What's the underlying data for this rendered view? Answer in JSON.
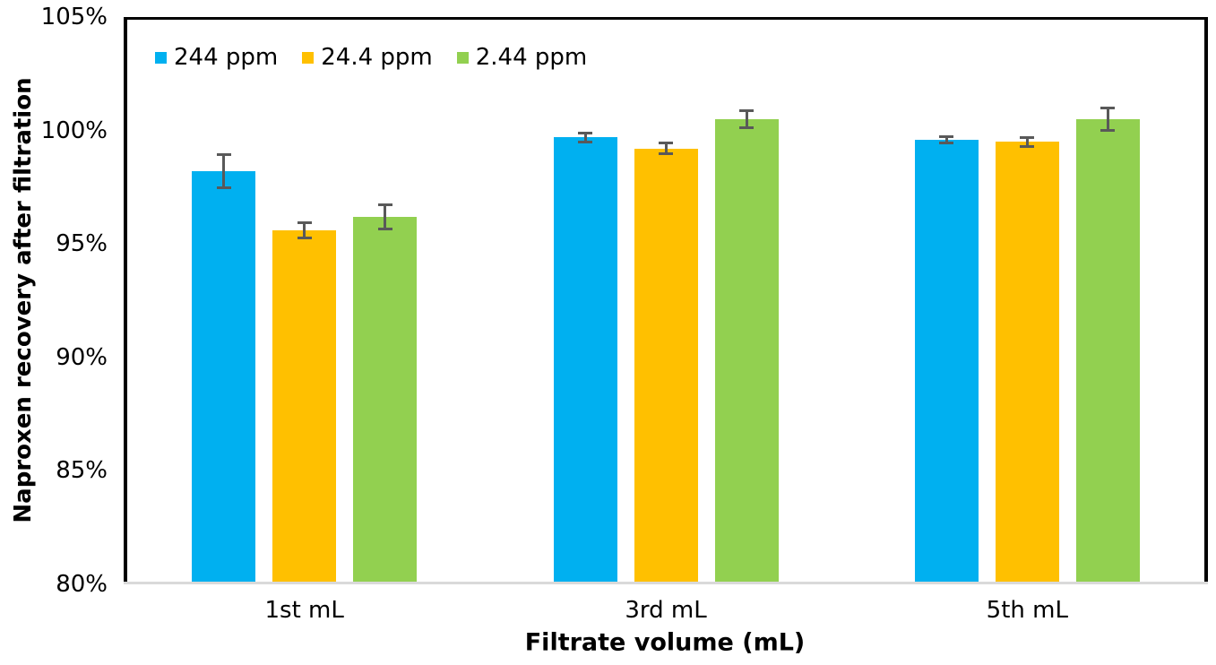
{
  "chart_data": {
    "type": "bar",
    "title": "",
    "categories": [
      "1st mL",
      "3rd mL",
      "5th mL"
    ],
    "series": [
      {
        "name": "244 ppm",
        "color": "#00B0F0",
        "values": [
          98.2,
          99.7,
          99.6
        ],
        "errors": [
          0.8,
          0.25,
          0.2
        ]
      },
      {
        "name": "24.4 ppm",
        "color": "#FFC000",
        "values": [
          95.6,
          99.2,
          99.5
        ],
        "errors": [
          0.4,
          0.3,
          0.25
        ]
      },
      {
        "name": "2.44 ppm",
        "color": "#92D050",
        "values": [
          96.2,
          100.5,
          100.5
        ],
        "errors": [
          0.6,
          0.45,
          0.55
        ]
      }
    ],
    "xlabel": "Filtrate volume (mL)",
    "ylabel": "Naproxen recovery after filtration",
    "ylim": [
      80,
      105
    ],
    "ytick_step": 5,
    "ytick_labels": [
      "80%",
      "85%",
      "90%",
      "95%",
      "100%",
      "105%"
    ],
    "grid": false,
    "legend_position": "top-left-inside",
    "colors": {
      "error_bar": "#595959",
      "axis_border": "#000000",
      "baseline": "#D9D9D9",
      "plot_background": "#FFFFFF"
    }
  }
}
